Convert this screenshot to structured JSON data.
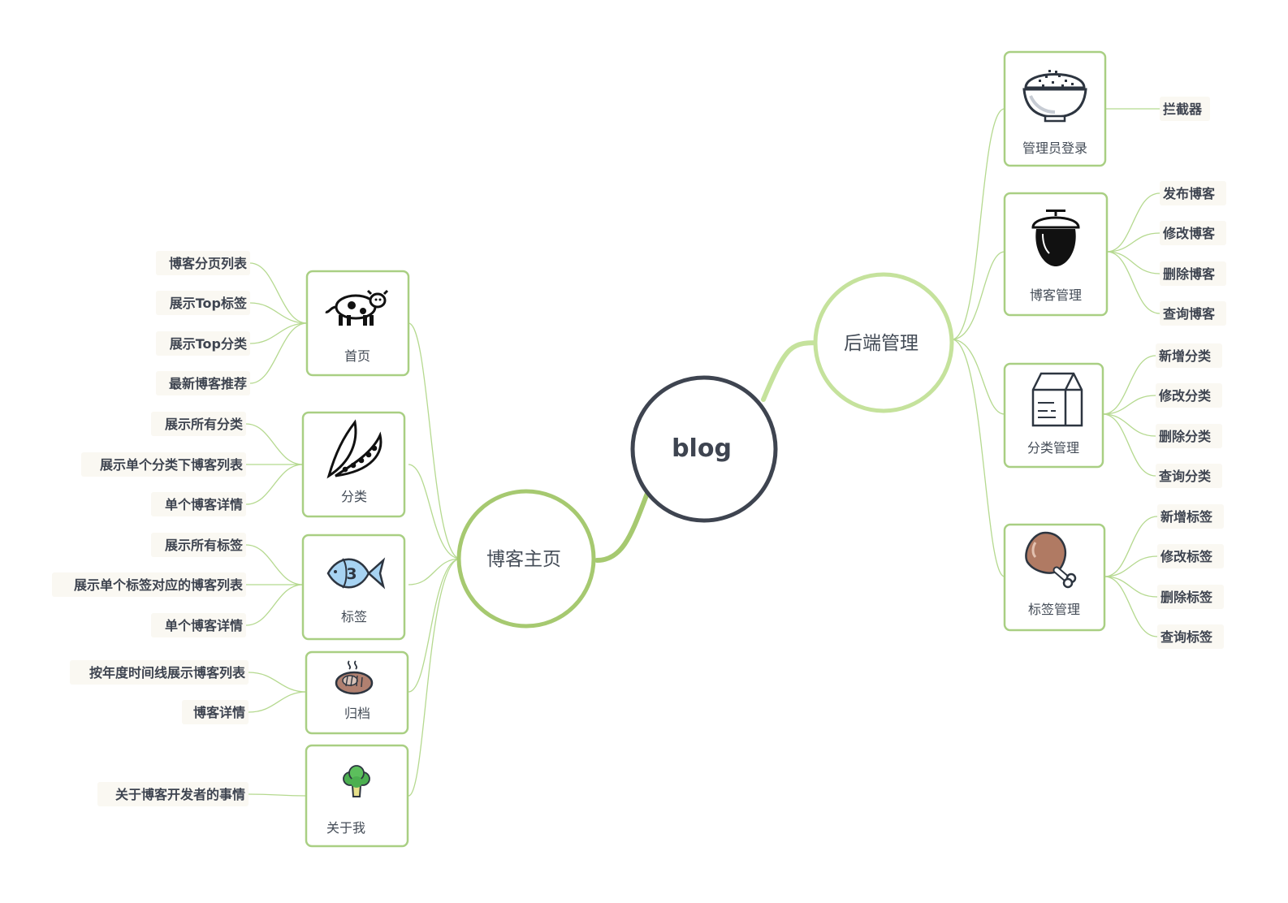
{
  "colors": {
    "root_stroke": "#3e4450",
    "left_branch": "#a6c970",
    "right_branch": "#c5e29c",
    "card_stroke": "#a9cf83",
    "thin_line": "#b5d98f",
    "leaf_background": "#faf8f2",
    "leaf_text": "#3e4450"
  },
  "root": {
    "label": "blog"
  },
  "left_main": {
    "label": "博客主页",
    "groups": [
      {
        "label": "首页",
        "icon": "cow-icon",
        "leaves": [
          "博客分页列表",
          "展示Top标签",
          "展示Top分类",
          "最新博客推荐"
        ]
      },
      {
        "label": "分类",
        "icon": "pea-pod-icon",
        "leaves": [
          "展示所有分类",
          "展示单个分类下博客列表",
          "单个博客详情"
        ]
      },
      {
        "label": "标签",
        "icon": "fish-icon",
        "leaves": [
          "展示所有标签",
          "展示单个标签对应的博客列表",
          "单个博客详情"
        ]
      },
      {
        "label": "归档",
        "icon": "steak-icon",
        "leaves": [
          "按年度时间线展示博客列表",
          "博客详情"
        ]
      },
      {
        "label": "关于我",
        "icon": "broccoli-icon",
        "leaves": [
          "关于博客开发者的事情"
        ]
      }
    ]
  },
  "right_main": {
    "label": "后端管理",
    "groups": [
      {
        "label": "管理员登录",
        "icon": "rice-bowl-icon",
        "leaves": [
          "拦截器"
        ]
      },
      {
        "label": "博客管理",
        "icon": "acorn-icon",
        "leaves": [
          "发布博客",
          "修改博客",
          "删除博客",
          "查询博客"
        ]
      },
      {
        "label": "分类管理",
        "icon": "milk-carton-icon",
        "leaves": [
          "新增分类",
          "修改分类",
          "删除分类",
          "查询分类"
        ]
      },
      {
        "label": "标签管理",
        "icon": "chicken-leg-icon",
        "leaves": [
          "新增标签",
          "修改标签",
          "删除标签",
          "查询标签"
        ]
      }
    ]
  }
}
